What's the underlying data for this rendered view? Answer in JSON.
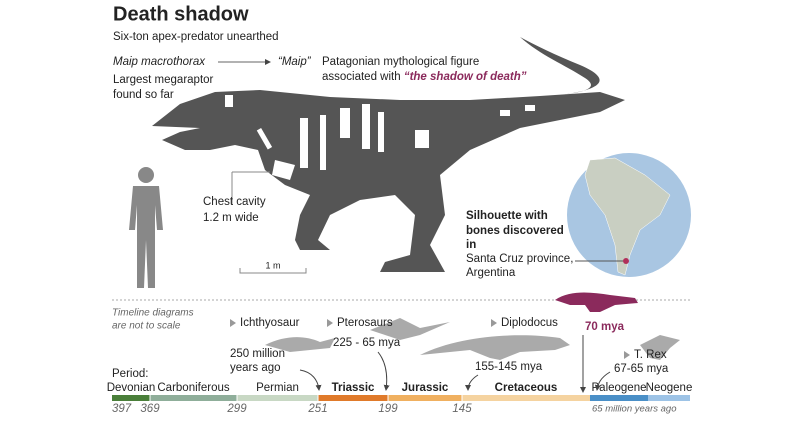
{
  "header": {
    "title": "Death shadow",
    "subtitle": "Six-ton apex-predator unearthed"
  },
  "name": {
    "scientific": "Maip macrothorax",
    "common": "“Maip”",
    "description": [
      "Largest megaraptor",
      "found so far"
    ],
    "meaning": "Patagonian mythological figure",
    "meaning_prefix": "associated with ",
    "meaning_highlight": "“the shadow of death”"
  },
  "chest": [
    "Chest cavity",
    "1.2 m wide"
  ],
  "scale": "1 m",
  "location": [
    "Silhouette with",
    "bones discovered",
    "in",
    "Santa Cruz province,",
    "Argentina"
  ],
  "timeline": {
    "note": [
      "Timeline diagrams",
      "are not to scale"
    ],
    "period_label": "Period:",
    "periods": [
      "Devonian",
      "Carboniferous",
      "Permian",
      "Triassic",
      "Jurassic",
      "Cretaceous",
      "Paleogene",
      "Neogene"
    ],
    "boundaries": [
      "397",
      "369",
      "299",
      "251",
      "199",
      "145"
    ],
    "end_label": "65 million years ago",
    "animals": [
      {
        "name": "Ichthyosaur",
        "date": [
          "250  million",
          "years ago"
        ]
      },
      {
        "name": "Pterosaurs",
        "date": [
          "225 - 65 mya"
        ]
      },
      {
        "name": "Diplodocus",
        "date": [
          "155-145 mya"
        ]
      },
      {
        "name": "T. Rex",
        "date": [
          "67-65 mya"
        ]
      }
    ],
    "maip_date": "70 mya"
  }
}
